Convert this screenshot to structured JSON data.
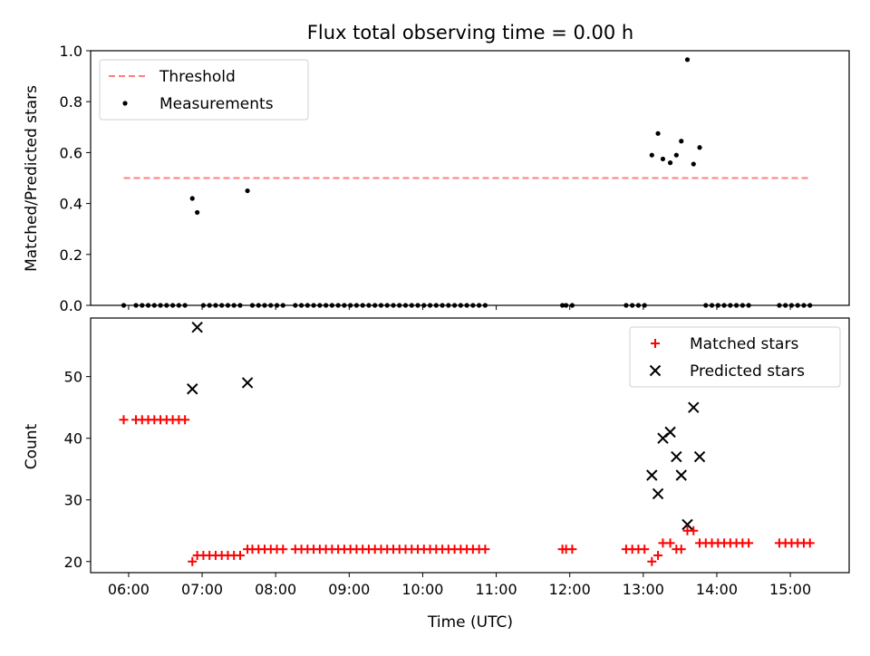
{
  "title": "Flux total observing time = 0.00 h",
  "chart_data": [
    {
      "type": "scatter",
      "ylabel": "Matched/Predicted stars",
      "xlabel": "",
      "xlim": [
        "05:29",
        "15:48"
      ],
      "ylim": [
        0,
        1.0
      ],
      "yticks": [
        "0.0",
        "0.2",
        "0.4",
        "0.6",
        "0.8",
        "1.0"
      ],
      "legend_position": "top-left",
      "threshold": {
        "name": "Threshold",
        "value": 0.5,
        "x_range": [
          "05:56",
          "15:15"
        ],
        "color": "#ff7f7f",
        "style": "dashed"
      },
      "series": [
        {
          "name": "Measurements",
          "marker": "dot",
          "color": "#000000",
          "points": [
            [
              "05:56",
              0
            ],
            [
              "06:06",
              0
            ],
            [
              "06:11",
              0
            ],
            [
              "06:16",
              0
            ],
            [
              "06:21",
              0
            ],
            [
              "06:26",
              0
            ],
            [
              "06:31",
              0
            ],
            [
              "06:36",
              0
            ],
            [
              "06:41",
              0
            ],
            [
              "06:46",
              0
            ],
            [
              "06:52",
              0.42
            ],
            [
              "06:56",
              0.365
            ],
            [
              "07:01",
              0
            ],
            [
              "07:06",
              0
            ],
            [
              "07:11",
              0
            ],
            [
              "07:16",
              0
            ],
            [
              "07:21",
              0
            ],
            [
              "07:26",
              0
            ],
            [
              "07:31",
              0
            ],
            [
              "07:37",
              0.45
            ],
            [
              "07:41",
              0
            ],
            [
              "07:46",
              0
            ],
            [
              "07:51",
              0
            ],
            [
              "07:56",
              0
            ],
            [
              "08:01",
              0
            ],
            [
              "08:06",
              0
            ],
            [
              "08:16",
              0
            ],
            [
              "08:21",
              0
            ],
            [
              "08:26",
              0
            ],
            [
              "08:31",
              0
            ],
            [
              "08:36",
              0
            ],
            [
              "08:41",
              0
            ],
            [
              "08:46",
              0
            ],
            [
              "08:51",
              0
            ],
            [
              "08:56",
              0
            ],
            [
              "09:01",
              0
            ],
            [
              "09:06",
              0
            ],
            [
              "09:11",
              0
            ],
            [
              "09:16",
              0
            ],
            [
              "09:21",
              0
            ],
            [
              "09:26",
              0
            ],
            [
              "09:31",
              0
            ],
            [
              "09:36",
              0
            ],
            [
              "09:41",
              0
            ],
            [
              "09:46",
              0
            ],
            [
              "09:51",
              0
            ],
            [
              "09:56",
              0
            ],
            [
              "10:01",
              0
            ],
            [
              "10:06",
              0
            ],
            [
              "10:11",
              0
            ],
            [
              "10:16",
              0
            ],
            [
              "10:21",
              0
            ],
            [
              "10:26",
              0
            ],
            [
              "10:31",
              0
            ],
            [
              "10:36",
              0
            ],
            [
              "10:41",
              0
            ],
            [
              "10:46",
              0
            ],
            [
              "10:51",
              0
            ],
            [
              "11:54",
              0
            ],
            [
              "11:57",
              0
            ],
            [
              "12:02",
              0
            ],
            [
              "12:46",
              0
            ],
            [
              "12:51",
              0
            ],
            [
              "12:56",
              0
            ],
            [
              "13:01",
              0
            ],
            [
              "13:07",
              0.59
            ],
            [
              "13:12",
              0.675
            ],
            [
              "13:16",
              0.575
            ],
            [
              "13:22",
              0.56
            ],
            [
              "13:27",
              0.59
            ],
            [
              "13:31",
              0.645
            ],
            [
              "13:36",
              0.965
            ],
            [
              "13:41",
              0.555
            ],
            [
              "13:46",
              0.62
            ],
            [
              "13:51",
              0
            ],
            [
              "13:56",
              0
            ],
            [
              "14:01",
              0
            ],
            [
              "14:06",
              0
            ],
            [
              "14:11",
              0
            ],
            [
              "14:16",
              0
            ],
            [
              "14:21",
              0
            ],
            [
              "14:26",
              0
            ],
            [
              "14:51",
              0
            ],
            [
              "14:56",
              0
            ],
            [
              "15:01",
              0
            ],
            [
              "15:06",
              0
            ],
            [
              "15:11",
              0
            ],
            [
              "15:16",
              0
            ]
          ]
        }
      ]
    },
    {
      "type": "scatter",
      "ylabel": "Count",
      "xlabel": "Time (UTC)",
      "xlim": [
        "05:29",
        "15:48"
      ],
      "ylim": [
        18.2,
        59.5
      ],
      "yticks": [
        "20",
        "30",
        "40",
        "50"
      ],
      "xticks": [
        "06:00",
        "07:00",
        "08:00",
        "09:00",
        "10:00",
        "11:00",
        "12:00",
        "13:00",
        "14:00",
        "15:00"
      ],
      "legend_position": "top-right",
      "series": [
        {
          "name": "Matched stars",
          "marker": "plus",
          "color": "#ff0000",
          "points": [
            [
              "05:56",
              43
            ],
            [
              "06:06",
              43
            ],
            [
              "06:11",
              43
            ],
            [
              "06:16",
              43
            ],
            [
              "06:21",
              43
            ],
            [
              "06:26",
              43
            ],
            [
              "06:31",
              43
            ],
            [
              "06:36",
              43
            ],
            [
              "06:41",
              43
            ],
            [
              "06:46",
              43
            ],
            [
              "06:52",
              20
            ],
            [
              "06:56",
              21
            ],
            [
              "07:01",
              21
            ],
            [
              "07:06",
              21
            ],
            [
              "07:11",
              21
            ],
            [
              "07:16",
              21
            ],
            [
              "07:21",
              21
            ],
            [
              "07:26",
              21
            ],
            [
              "07:31",
              21
            ],
            [
              "07:37",
              22
            ],
            [
              "07:41",
              22
            ],
            [
              "07:46",
              22
            ],
            [
              "07:51",
              22
            ],
            [
              "07:56",
              22
            ],
            [
              "08:01",
              22
            ],
            [
              "08:06",
              22
            ],
            [
              "08:16",
              22
            ],
            [
              "08:21",
              22
            ],
            [
              "08:26",
              22
            ],
            [
              "08:31",
              22
            ],
            [
              "08:36",
              22
            ],
            [
              "08:41",
              22
            ],
            [
              "08:46",
              22
            ],
            [
              "08:51",
              22
            ],
            [
              "08:56",
              22
            ],
            [
              "09:01",
              22
            ],
            [
              "09:06",
              22
            ],
            [
              "09:11",
              22
            ],
            [
              "09:16",
              22
            ],
            [
              "09:21",
              22
            ],
            [
              "09:26",
              22
            ],
            [
              "09:31",
              22
            ],
            [
              "09:36",
              22
            ],
            [
              "09:41",
              22
            ],
            [
              "09:46",
              22
            ],
            [
              "09:51",
              22
            ],
            [
              "09:56",
              22
            ],
            [
              "10:01",
              22
            ],
            [
              "10:06",
              22
            ],
            [
              "10:11",
              22
            ],
            [
              "10:16",
              22
            ],
            [
              "10:21",
              22
            ],
            [
              "10:26",
              22
            ],
            [
              "10:31",
              22
            ],
            [
              "10:36",
              22
            ],
            [
              "10:41",
              22
            ],
            [
              "10:46",
              22
            ],
            [
              "10:51",
              22
            ],
            [
              "11:54",
              22
            ],
            [
              "11:57",
              22
            ],
            [
              "12:02",
              22
            ],
            [
              "12:46",
              22
            ],
            [
              "12:51",
              22
            ],
            [
              "12:56",
              22
            ],
            [
              "13:01",
              22
            ],
            [
              "13:07",
              20
            ],
            [
              "13:12",
              21
            ],
            [
              "13:16",
              23
            ],
            [
              "13:22",
              23
            ],
            [
              "13:27",
              22
            ],
            [
              "13:31",
              22
            ],
            [
              "13:36",
              25
            ],
            [
              "13:41",
              25
            ],
            [
              "13:46",
              23
            ],
            [
              "13:51",
              23
            ],
            [
              "13:56",
              23
            ],
            [
              "14:01",
              23
            ],
            [
              "14:06",
              23
            ],
            [
              "14:11",
              23
            ],
            [
              "14:16",
              23
            ],
            [
              "14:21",
              23
            ],
            [
              "14:26",
              23
            ],
            [
              "14:51",
              23
            ],
            [
              "14:56",
              23
            ],
            [
              "15:01",
              23
            ],
            [
              "15:06",
              23
            ],
            [
              "15:11",
              23
            ],
            [
              "15:16",
              23
            ]
          ]
        },
        {
          "name": "Predicted stars",
          "marker": "x",
          "color": "#000000",
          "points": [
            [
              "06:52",
              48
            ],
            [
              "06:56",
              58
            ],
            [
              "07:37",
              49
            ],
            [
              "13:07",
              34
            ],
            [
              "13:12",
              31
            ],
            [
              "13:16",
              40
            ],
            [
              "13:22",
              41
            ],
            [
              "13:27",
              37
            ],
            [
              "13:31",
              34
            ],
            [
              "13:36",
              26
            ],
            [
              "13:41",
              45
            ],
            [
              "13:46",
              37
            ]
          ]
        }
      ]
    }
  ]
}
